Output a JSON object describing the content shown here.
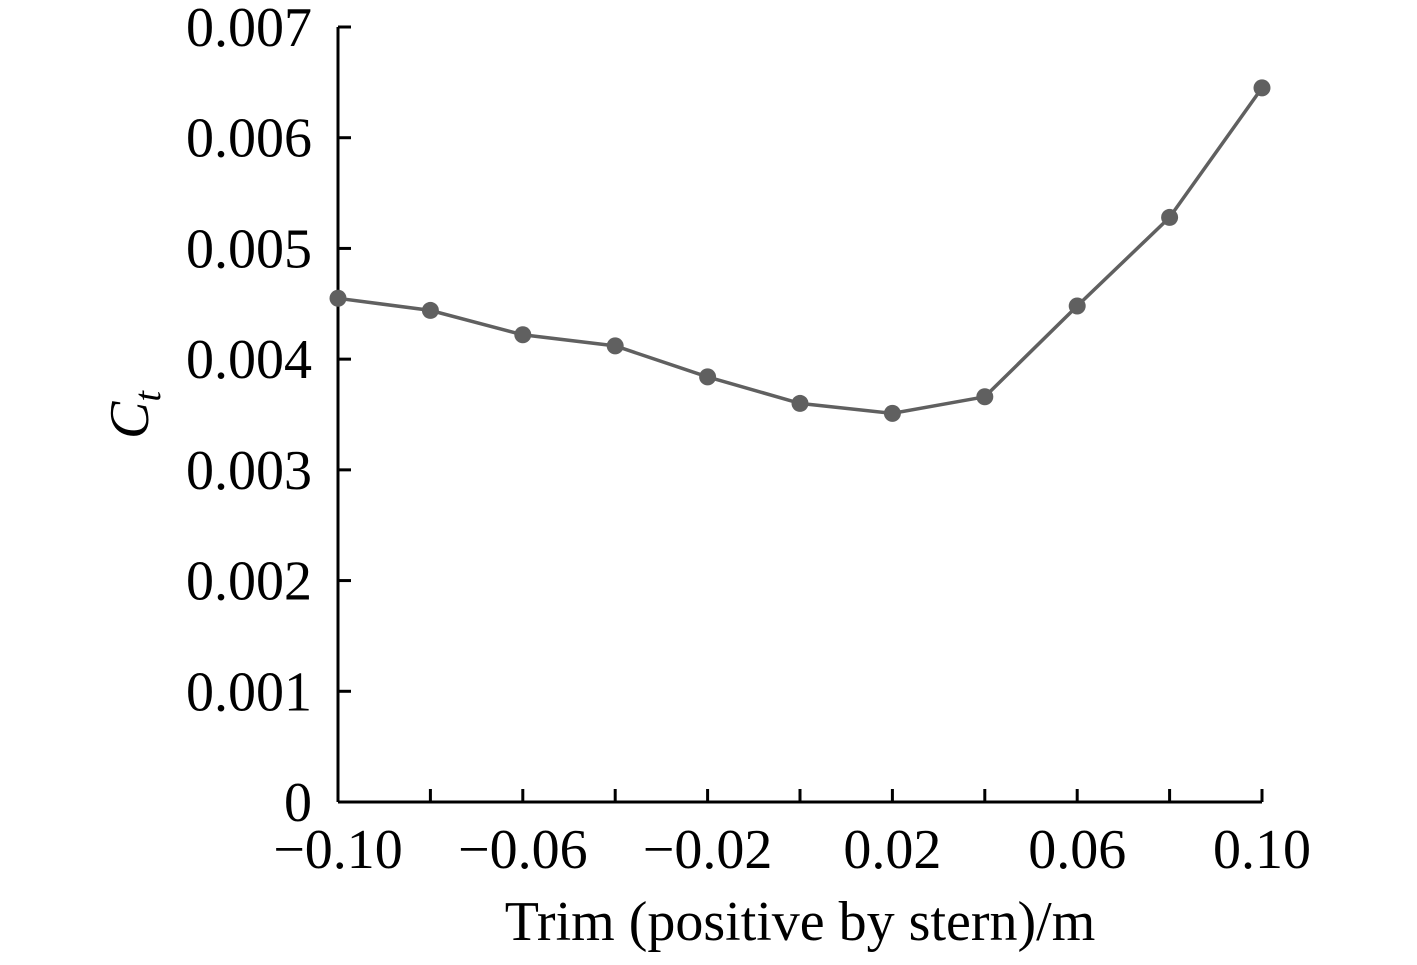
{
  "chart_data": {
    "type": "line",
    "title": "",
    "xlabel": "Trim (positive by stern)/m",
    "ylabel_main": "C",
    "ylabel_sub": "t",
    "xlim": [
      -0.1,
      0.1
    ],
    "ylim": [
      0,
      0.007
    ],
    "x_ticks": [
      -0.1,
      -0.08,
      -0.06,
      -0.04,
      -0.02,
      0.0,
      0.02,
      0.04,
      0.06,
      0.08,
      0.1
    ],
    "x_tick_labels": [
      "−0.10",
      "",
      "−0.06",
      "",
      "−0.02",
      "",
      "0.02",
      "",
      "0.06",
      "",
      "0.10"
    ],
    "y_ticks": [
      0,
      0.001,
      0.002,
      0.003,
      0.004,
      0.005,
      0.006,
      0.007
    ],
    "y_tick_labels": [
      "0",
      "0.001",
      "0.002",
      "0.003",
      "0.004",
      "0.005",
      "0.006",
      "0.007"
    ],
    "grid": false,
    "legend": "none",
    "series": [
      {
        "color": "#606060",
        "x": [
          -0.1,
          -0.08,
          -0.06,
          -0.04,
          -0.02,
          0.0,
          0.02,
          0.04,
          0.06,
          0.08,
          0.1
        ],
        "y": [
          0.00455,
          0.00444,
          0.00422,
          0.00412,
          0.00384,
          0.0036,
          0.00351,
          0.00366,
          0.00448,
          0.00528,
          0.00645
        ]
      }
    ]
  }
}
